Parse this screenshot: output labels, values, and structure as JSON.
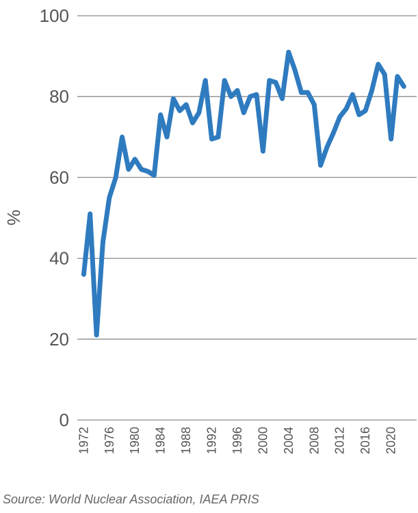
{
  "chart_data": {
    "type": "line",
    "title": "",
    "xlabel": "",
    "ylabel": "%",
    "ylim": [
      0,
      100
    ],
    "yticks": [
      0,
      20,
      40,
      60,
      80,
      100
    ],
    "xticks": [
      1972,
      1976,
      1980,
      1984,
      1988,
      1992,
      1996,
      2000,
      2004,
      2008,
      2012,
      2016,
      2020
    ],
    "xlim": [
      1971,
      2024
    ],
    "grid": true,
    "line_color": "#2f7bbf",
    "x": [
      1972,
      1973,
      1974,
      1975,
      1976,
      1977,
      1978,
      1979,
      1980,
      1981,
      1982,
      1983,
      1984,
      1985,
      1986,
      1987,
      1988,
      1989,
      1990,
      1991,
      1992,
      1993,
      1994,
      1995,
      1996,
      1997,
      1998,
      1999,
      2000,
      2001,
      2002,
      2003,
      2004,
      2005,
      2006,
      2007,
      2008,
      2009,
      2010,
      2011,
      2012,
      2013,
      2014,
      2015,
      2016,
      2017,
      2018,
      2019,
      2020,
      2021,
      2022
    ],
    "series": [
      {
        "values": [
          36,
          51,
          21,
          44,
          55,
          60,
          70,
          62,
          64.5,
          62,
          61.5,
          60.5,
          75.5,
          70,
          79.5,
          76.5,
          78,
          73.5,
          76,
          84,
          69.5,
          70,
          84,
          80,
          81.5,
          76,
          80,
          80.5,
          66.5,
          84,
          83.5,
          79.5,
          91,
          86.5,
          81,
          81,
          78,
          63,
          67.5,
          71,
          75,
          77,
          80.5,
          75.5,
          76.5,
          81.5,
          88,
          85.5,
          69.5,
          85,
          82.5
        ]
      }
    ]
  },
  "source": "Source: World Nuclear Association, IAEA PRIS"
}
